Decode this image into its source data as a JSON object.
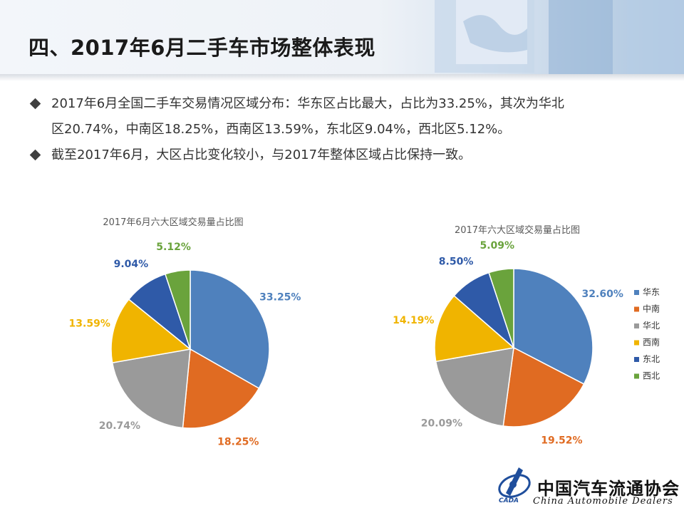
{
  "header": {
    "title": "四、2017年6月二手车市场整体表现"
  },
  "bullets": [
    {
      "text": "2017年6月全国二手车交易情况区域分布：华东区占比最大，占比为33.25%，其次为华北"
    },
    {
      "text": "区20.74%，中南区18.25%，西南区13.59%，东北区9.04%，西北区5.12%。"
    },
    {
      "text": "截至2017年6月，大区占比变化较小，与2017年整体区域占比保持一致。"
    }
  ],
  "colors": {
    "华东": "#4f81bd",
    "中南": "#e06b22",
    "华北": "#9a9a9a",
    "西南": "#f0b400",
    "东北": "#2f5aa8",
    "西北": "#6aa33c"
  },
  "chart_data": [
    {
      "type": "pie",
      "title": "2017年6月六大区域交易量占比图",
      "categories": [
        "华东",
        "中南",
        "华北",
        "西南",
        "东北",
        "西北"
      ],
      "values": [
        33.25,
        18.25,
        20.74,
        13.59,
        9.04,
        5.12
      ],
      "data_labels": [
        "33.25%",
        "18.25%",
        "20.74%",
        "13.59%",
        "9.04%",
        "5.12%"
      ],
      "legend": "none"
    },
    {
      "type": "pie",
      "title": "2017年六大区域交易量占比图",
      "categories": [
        "华东",
        "中南",
        "华北",
        "西南",
        "东北",
        "西北"
      ],
      "values": [
        32.6,
        19.52,
        20.09,
        14.19,
        8.5,
        5.09
      ],
      "data_labels": [
        "32.60%",
        "19.52%",
        "20.09%",
        "14.19%",
        "8.50%",
        "5.09%"
      ],
      "legend": "right"
    }
  ],
  "logo": {
    "cn": "中国汽车流通协会",
    "en": "China  Automobile Dealers",
    "abbr": "CADA"
  }
}
